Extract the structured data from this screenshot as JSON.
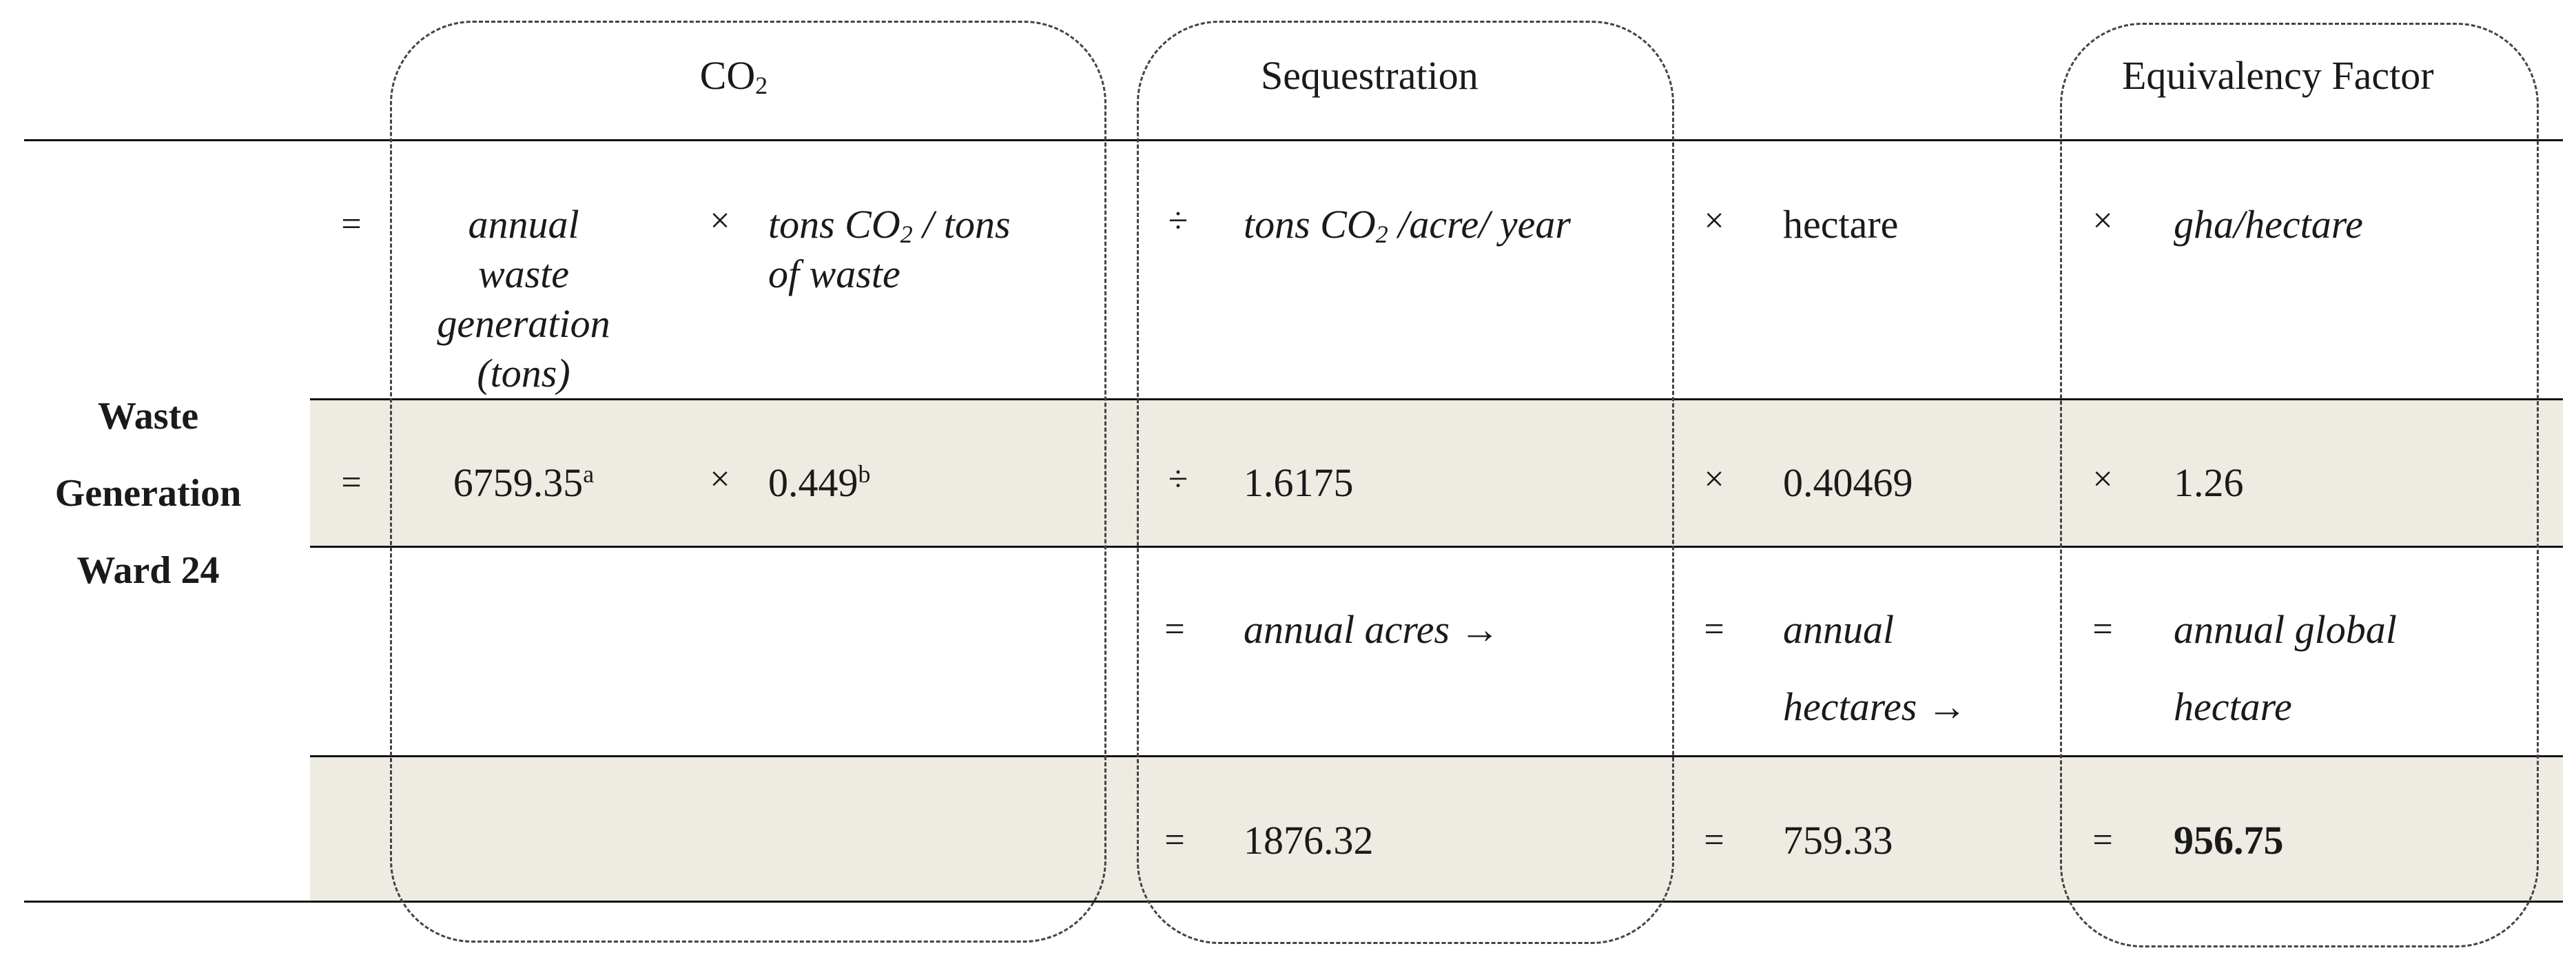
{
  "headers": {
    "co2": "CO",
    "co2_sub": "2",
    "sequestration": "Sequestration",
    "equivalency_factor": "Equivalency Factor"
  },
  "row_label": {
    "line1": "Waste",
    "line2": "Generation",
    "line3": "Ward 24"
  },
  "formula_row": {
    "eq": "=",
    "annual_waste": [
      "annual",
      "waste",
      "generation",
      "(tons)"
    ],
    "times1": "×",
    "tons_co2_a": "tons CO",
    "tons_co2_sub": "2",
    "tons_co2_b": " / tons",
    "tons_co2_line2": "of waste",
    "div": "÷",
    "seq_a": "tons CO",
    "seq_sub": "2",
    "seq_b": " /acre/ year",
    "times2": "×",
    "hectare": "hectare",
    "times3": "×",
    "gha_hectare": "gha/hectare"
  },
  "values_row": {
    "eq": "=",
    "waste": "6759.35",
    "waste_sup": "a",
    "times1": "×",
    "factor": "0.449",
    "factor_sup": "b",
    "div": "÷",
    "sequestration": "1.6175",
    "times2": "×",
    "hectare": "0.40469",
    "times3": "×",
    "equivalency": "1.26"
  },
  "result_label_row": {
    "eq1": "=",
    "acres": "annual acres →",
    "eq2": "=",
    "hectares_line1": "annual",
    "hectares_line2": "hectares →",
    "eq3": "=",
    "global_line1": "annual global",
    "global_line2": "hectare"
  },
  "result_value_row": {
    "eq1": "=",
    "acres": "1876.32",
    "eq2": "=",
    "hectares": "759.33",
    "eq3": "=",
    "global": "956.75"
  },
  "colors": {
    "shade": "#edebe2",
    "rule": "#111111",
    "dash": "#444444"
  }
}
